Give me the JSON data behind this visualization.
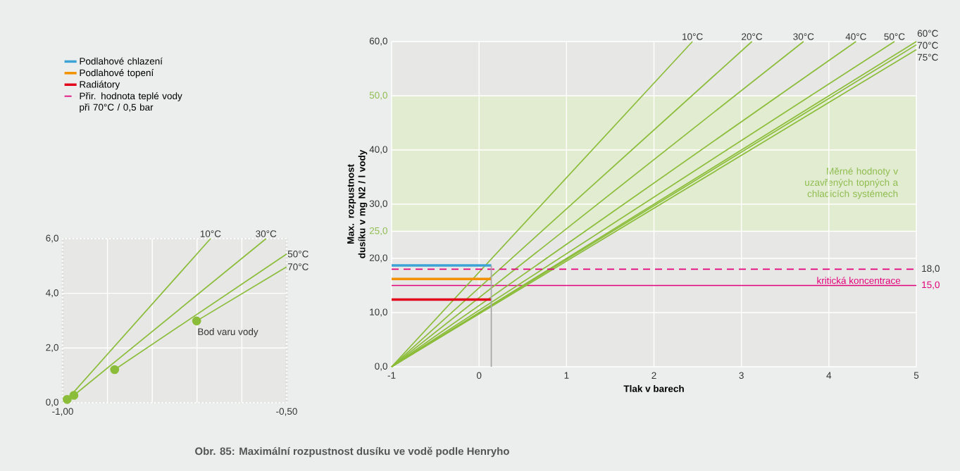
{
  "chart_data": [
    {
      "type": "line",
      "title": "Obr. 85: Maximální rozpustnost dusíku ve vodě podle Henryho",
      "xlabel": "Tlak v barech",
      "ylabel": "Max. rozpustnost dusíku v mg N2 / l vody",
      "xlim": [
        -1,
        5
      ],
      "ylim": [
        0,
        60
      ],
      "xticks": [
        -1,
        0,
        1,
        2,
        3,
        4,
        5
      ],
      "yticks": [
        {
          "value": 0,
          "label": "0,0"
        },
        {
          "value": 10,
          "label": "10,0"
        },
        {
          "value": 20,
          "label": "20,0"
        },
        {
          "value": 25,
          "label": "25,0"
        },
        {
          "value": 30,
          "label": "30,0"
        },
        {
          "value": 40,
          "label": "40,0"
        },
        {
          "value": 50,
          "label": "50,0"
        },
        {
          "value": 60,
          "label": "60,0"
        }
      ],
      "y2lim": [
        0,
        60
      ],
      "y2ticks": [
        {
          "value": 18,
          "label": "18,0"
        },
        {
          "value": 15,
          "label": "15,0"
        }
      ],
      "grid": true,
      "legend": "left",
      "series": [
        {
          "name": "10°C",
          "color": "#8cbd3a",
          "x": [
            -1,
            2.44
          ],
          "values": [
            0,
            60
          ]
        },
        {
          "name": "20°C",
          "color": "#8cbd3a",
          "x": [
            -1,
            3.12
          ],
          "values": [
            0,
            60
          ]
        },
        {
          "name": "30°C",
          "color": "#8cbd3a",
          "x": [
            -1,
            3.71
          ],
          "values": [
            0,
            60
          ]
        },
        {
          "name": "40°C",
          "color": "#8cbd3a",
          "x": [
            -1,
            4.31
          ],
          "values": [
            0,
            60
          ]
        },
        {
          "name": "50°C",
          "color": "#8cbd3a",
          "x": [
            -1,
            4.75
          ],
          "values": [
            0,
            60
          ]
        },
        {
          "name": "60°C",
          "color": "#8cbd3a",
          "x": [
            -1,
            5
          ],
          "values": [
            0,
            60
          ]
        },
        {
          "name": "70°C",
          "color": "#8cbd3a",
          "x": [
            -1,
            5
          ],
          "values": [
            0,
            59.4
          ]
        },
        {
          "name": "75°C",
          "color": "#8cbd3a",
          "x": [
            -1,
            5
          ],
          "values": [
            0,
            58.5
          ]
        },
        {
          "name": "Podlahové chlazení",
          "color": "#3ba3d6",
          "x": [
            -1,
            0.14
          ],
          "values": [
            18.7,
            18.7
          ]
        },
        {
          "name": "Podlahové topení",
          "color": "#f39200",
          "x": [
            -1,
            0.14
          ],
          "values": [
            16.2,
            16.2
          ]
        },
        {
          "name": "Radiátory",
          "color": "#e2001a",
          "x": [
            -1,
            0.14
          ],
          "values": [
            12.4,
            12.4
          ]
        },
        {
          "name": "Přir. hodnota teplé vody při 70°C / 0,5 bar",
          "color": "#e2007a",
          "x": [
            -1,
            5
          ],
          "values": [
            18,
            18
          ],
          "line_style": "dashed"
        },
        {
          "color": "#a6a6a6",
          "x": [
            0.14,
            0.14
          ],
          "values": [
            0,
            18.7
          ]
        }
      ],
      "ref_lines": [
        {
          "axis": "y",
          "value": 15,
          "label": "kritická koncentrace",
          "color": "#e2007a"
        }
      ],
      "bands": [
        {
          "axis": "y",
          "from": 25,
          "to": 50,
          "label": "Měrné hodnoty v uzavřených topných a chladicích systémech",
          "color": "#e1ecd0"
        }
      ]
    },
    {
      "type": "line",
      "xlim": [
        -1,
        -0.5
      ],
      "ylim": [
        0,
        6
      ],
      "xticks": [
        {
          "value": -1,
          "label": "-1,00"
        },
        {
          "value": -0.9,
          "label": null
        },
        {
          "value": -0.8,
          "label": null
        },
        {
          "value": -0.7,
          "label": null
        },
        {
          "value": -0.6,
          "label": null
        },
        {
          "value": -0.5,
          "label": "-0,50"
        }
      ],
      "yticks": [
        {
          "value": 0,
          "label": "0,0"
        },
        {
          "value": 2,
          "label": "2,0"
        },
        {
          "value": 4,
          "label": "4,0"
        },
        {
          "value": 6,
          "label": "6,0"
        }
      ],
      "grid": true,
      "series": [
        {
          "name": "10°C",
          "color": "#8cbd3a",
          "x": [
            -0.99,
            -0.67
          ],
          "values": [
            0.12,
            6
          ]
        },
        {
          "name": "30°C",
          "color": "#8cbd3a",
          "x": [
            -0.975,
            -0.546
          ],
          "values": [
            0.27,
            6
          ]
        },
        {
          "name": "50°C",
          "color": "#8cbd3a",
          "x": [
            -0.884,
            -0.5
          ],
          "values": [
            1.21,
            5.44
          ]
        },
        {
          "name": "70°C",
          "color": "#8cbd3a",
          "x": [
            -0.701,
            -0.5
          ],
          "values": [
            2.99,
            4.97
          ]
        },
        {
          "type": "scatter",
          "color": "#8cbd3a",
          "marker": "circle",
          "x": [
            -0.99,
            -0.975,
            -0.884,
            -0.701
          ],
          "values": [
            0.12,
            0.27,
            1.21,
            2.99
          ]
        }
      ],
      "annotations": [
        {
          "text": "Bod varu vody",
          "x": -0.701,
          "y": 2.99
        }
      ]
    }
  ]
}
